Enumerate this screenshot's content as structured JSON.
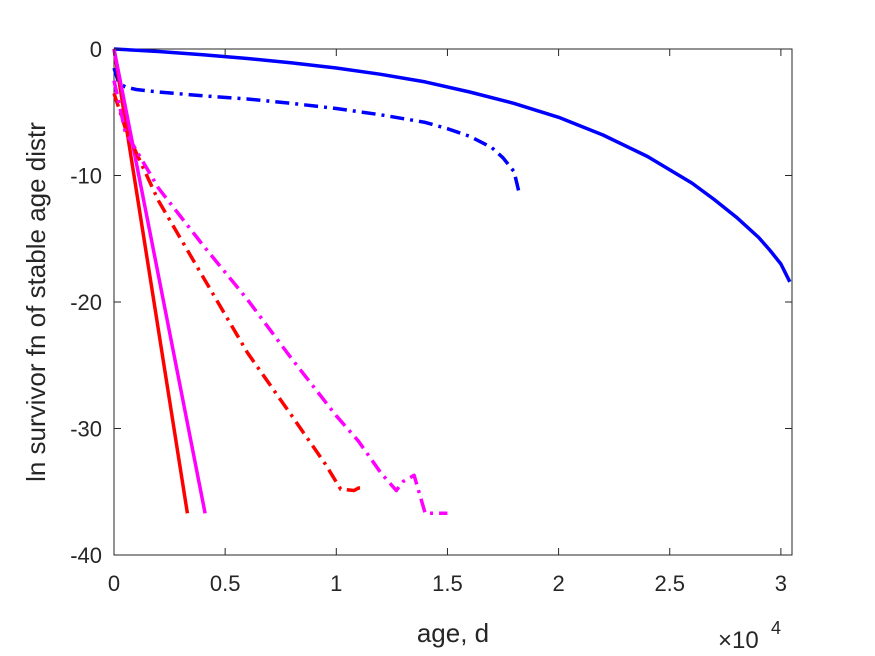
{
  "chart_data": {
    "type": "line",
    "title": "",
    "xlabel": "age, d",
    "ylabel": "ln survivor fn of stable age distr",
    "x_multiplier_label": "×10",
    "x_multiplier_exponent": "4",
    "xlim": [
      0,
      30500
    ],
    "ylim": [
      -40,
      0
    ],
    "xticks": [
      0,
      5000,
      10000,
      15000,
      20000,
      25000,
      30000
    ],
    "xtick_labels": [
      "0",
      "0.5",
      "1",
      "1.5",
      "2",
      "2.5",
      "3"
    ],
    "yticks": [
      0,
      -10,
      -20,
      -30,
      -40
    ],
    "ytick_labels": [
      "0",
      "-10",
      "-20",
      "-30",
      "-40"
    ],
    "grid": false,
    "legend": "none",
    "series": [
      {
        "color": "#0000ff",
        "style": "solid",
        "x": [
          0,
          2000,
          4000,
          6000,
          8000,
          10000,
          12000,
          14000,
          16000,
          18000,
          20000,
          22000,
          24000,
          26000,
          27000,
          28000,
          29000,
          29500,
          30000,
          30400
        ],
        "y": [
          0,
          -0.2,
          -0.45,
          -0.75,
          -1.1,
          -1.5,
          -2.0,
          -2.6,
          -3.4,
          -4.3,
          -5.4,
          -6.8,
          -8.5,
          -10.6,
          -11.9,
          -13.3,
          -14.9,
          -15.9,
          -17.0,
          -18.4
        ]
      },
      {
        "color": "#0000ff",
        "style": "dashdot",
        "x": [
          0,
          200,
          500,
          1000,
          2000,
          4000,
          6000,
          8000,
          10000,
          12000,
          14000,
          15000,
          16000,
          17000,
          17500,
          18000,
          18200
        ],
        "y": [
          -1.5,
          -2.6,
          -3.0,
          -3.2,
          -3.4,
          -3.7,
          -3.95,
          -4.3,
          -4.7,
          -5.2,
          -5.8,
          -6.3,
          -6.9,
          -7.8,
          -8.6,
          -9.7,
          -11.2
        ]
      },
      {
        "color": "#ff0000",
        "style": "solid",
        "x": [
          0,
          3300
        ],
        "y": [
          0,
          -36.7
        ]
      },
      {
        "color": "#ff00ff",
        "style": "solid",
        "x": [
          0,
          4100
        ],
        "y": [
          0,
          -36.7
        ]
      },
      {
        "color": "#ff0000",
        "style": "dashdot",
        "x": [
          0,
          500,
          1000,
          2000,
          4000,
          6000,
          8000,
          9500,
          10200,
          10800,
          11000,
          11300
        ],
        "y": [
          -3.5,
          -6.2,
          -8.2,
          -12.0,
          -18.0,
          -24.0,
          -29.0,
          -32.8,
          -34.8,
          -34.9,
          -34.7,
          -34.7
        ]
      },
      {
        "color": "#ff00ff",
        "style": "dashdot",
        "x": [
          0,
          500,
          1000,
          2000,
          4000,
          6000,
          8000,
          10000,
          11000,
          12000,
          12700,
          13000,
          13500,
          14000,
          14200,
          15000
        ],
        "y": [
          -2.5,
          -6.5,
          -8.0,
          -11.0,
          -15.5,
          -19.8,
          -24.5,
          -29.0,
          -31.0,
          -33.5,
          -34.9,
          -34.2,
          -33.7,
          -36.7,
          -36.7,
          -36.7
        ]
      }
    ]
  }
}
